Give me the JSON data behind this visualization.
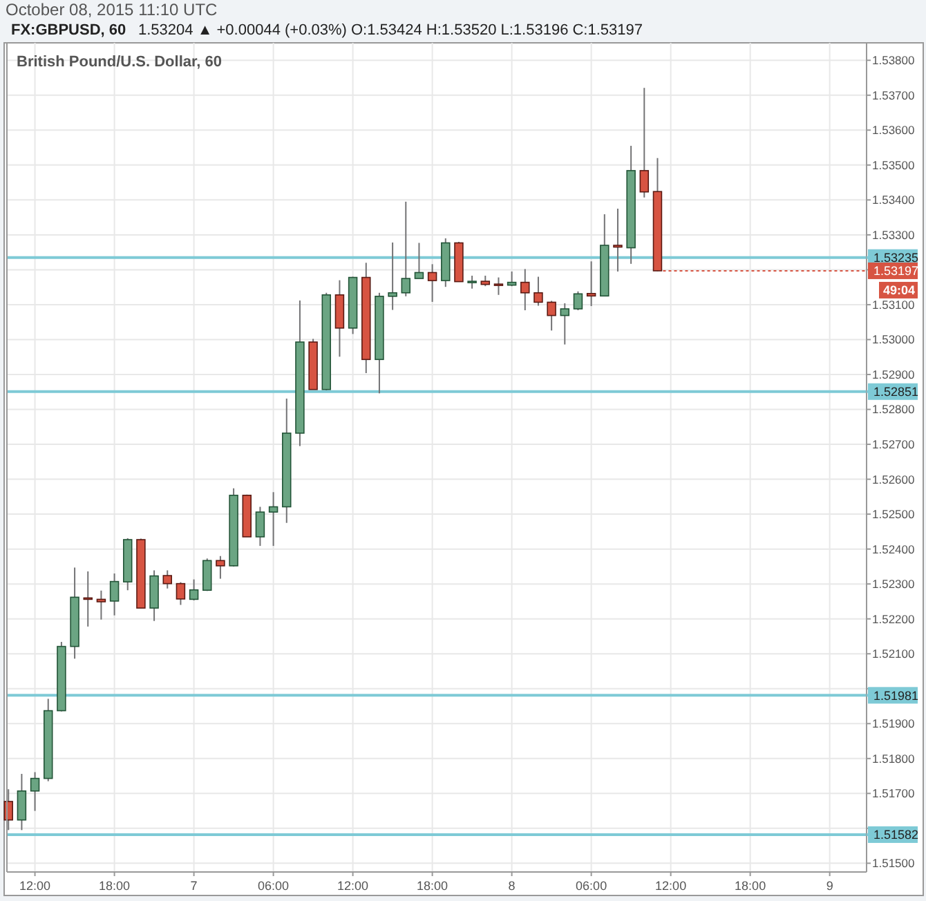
{
  "chart_data": {
    "type": "candlestick",
    "title": "FX:GBPUSD, 60",
    "subtitle": "1.53204 ▲ +0.00044 (+0.03%) O:1.53424 H:1.53520 L:1.53196 C:1.53197",
    "annotations": [
      "October 08, 2015 11:10 UTC",
      "British Pound/U.S. Dollar, 60",
      {
        "text": "1.53197",
        "x": "2015-10-08T11:00",
        "y": 1.53197
      },
      "49:04"
    ],
    "x": [
      "2015-10-06T10:00",
      "2015-10-06T11:00",
      "2015-10-06T12:00",
      "2015-10-06T13:00",
      "2015-10-06T14:00",
      "2015-10-06T15:00",
      "2015-10-06T16:00",
      "2015-10-06T17:00",
      "2015-10-06T18:00",
      "2015-10-06T19:00",
      "2015-10-06T20:00",
      "2015-10-06T21:00",
      "2015-10-06T22:00",
      "2015-10-06T23:00",
      "2015-10-07T00:00",
      "2015-10-07T01:00",
      "2015-10-07T02:00",
      "2015-10-07T03:00",
      "2015-10-07T04:00",
      "2015-10-07T05:00",
      "2015-10-07T06:00",
      "2015-10-07T07:00",
      "2015-10-07T08:00",
      "2015-10-07T09:00",
      "2015-10-07T10:00",
      "2015-10-07T11:00",
      "2015-10-07T12:00",
      "2015-10-07T13:00",
      "2015-10-07T14:00",
      "2015-10-07T15:00",
      "2015-10-07T16:00",
      "2015-10-07T17:00",
      "2015-10-07T18:00",
      "2015-10-07T19:00",
      "2015-10-07T20:00",
      "2015-10-07T21:00",
      "2015-10-07T22:00",
      "2015-10-07T23:00",
      "2015-10-08T00:00",
      "2015-10-08T01:00",
      "2015-10-08T02:00",
      "2015-10-08T03:00",
      "2015-10-08T04:00",
      "2015-10-08T05:00",
      "2015-10-08T06:00",
      "2015-10-08T07:00",
      "2015-10-08T08:00",
      "2015-10-08T09:00",
      "2015-10-08T10:00",
      "2015-10-08T11:00"
    ],
    "ohlc": [
      [
        1.51677,
        1.51712,
        1.51595,
        1.51624
      ],
      [
        1.51624,
        1.51756,
        1.51595,
        1.51707
      ],
      [
        1.51707,
        1.51761,
        1.5165,
        1.51743
      ],
      [
        1.51743,
        1.51971,
        1.51735,
        1.51937
      ],
      [
        1.51937,
        1.52134,
        1.51935,
        1.52121
      ],
      [
        1.52121,
        1.52347,
        1.52086,
        1.52262
      ],
      [
        1.5226,
        1.52336,
        1.52178,
        1.52256
      ],
      [
        1.52256,
        1.52281,
        1.52198,
        1.52249
      ],
      [
        1.52251,
        1.5233,
        1.5221,
        1.52307
      ],
      [
        1.52306,
        1.52431,
        1.52282,
        1.52427
      ],
      [
        1.52427,
        1.5243,
        1.52231,
        1.52231
      ],
      [
        1.52231,
        1.52339,
        1.52194,
        1.52323
      ],
      [
        1.52324,
        1.52339,
        1.52287,
        1.52301
      ],
      [
        1.52301,
        1.52305,
        1.5224,
        1.52257
      ],
      [
        1.52256,
        1.52313,
        1.52253,
        1.52283
      ],
      [
        1.52282,
        1.52373,
        1.5228,
        1.52367
      ],
      [
        1.52367,
        1.5238,
        1.52315,
        1.52352
      ],
      [
        1.52352,
        1.52574,
        1.5235,
        1.52554
      ],
      [
        1.52554,
        1.52556,
        1.52435,
        1.52435
      ],
      [
        1.52435,
        1.52521,
        1.52409,
        1.52506
      ],
      [
        1.52506,
        1.52563,
        1.52409,
        1.52521
      ],
      [
        1.52521,
        1.52831,
        1.52475,
        1.52732
      ],
      [
        1.52732,
        1.53112,
        1.52695,
        1.52993
      ],
      [
        1.52993,
        1.53002,
        1.52857,
        1.52857
      ],
      [
        1.52857,
        1.53134,
        1.52855,
        1.53128
      ],
      [
        1.53128,
        1.5317,
        1.52951,
        1.53033
      ],
      [
        1.53033,
        1.5318,
        1.53016,
        1.53178
      ],
      [
        1.53178,
        1.5322,
        1.52904,
        1.52943
      ],
      [
        1.52943,
        1.53134,
        1.52846,
        1.53124
      ],
      [
        1.53124,
        1.53278,
        1.53085,
        1.53134
      ],
      [
        1.53134,
        1.53395,
        1.53124,
        1.53175
      ],
      [
        1.53175,
        1.53277,
        1.53175,
        1.53192
      ],
      [
        1.53192,
        1.53216,
        1.53108,
        1.53169
      ],
      [
        1.53169,
        1.5329,
        1.53151,
        1.53277
      ],
      [
        1.53277,
        1.5328,
        1.53166,
        1.53166
      ],
      [
        1.53166,
        1.53183,
        1.53146,
        1.53167
      ],
      [
        1.53167,
        1.53183,
        1.53153,
        1.53158
      ],
      [
        1.53159,
        1.53178,
        1.53128,
        1.53156
      ],
      [
        1.53156,
        1.53195,
        1.53153,
        1.53164
      ],
      [
        1.53164,
        1.53202,
        1.53084,
        1.53134
      ],
      [
        1.53134,
        1.5318,
        1.53097,
        1.53107
      ],
      [
        1.53107,
        1.53111,
        1.53026,
        1.53069
      ],
      [
        1.53069,
        1.53104,
        1.52986,
        1.53088
      ],
      [
        1.53088,
        1.53138,
        1.53084,
        1.53131
      ],
      [
        1.53132,
        1.53224,
        1.53096,
        1.53125
      ],
      [
        1.53125,
        1.53359,
        1.53125,
        1.5327
      ],
      [
        1.5327,
        1.53375,
        1.53195,
        1.53265
      ],
      [
        1.53263,
        1.53555,
        1.53217,
        1.53484
      ],
      [
        1.53484,
        1.53721,
        1.53407,
        1.53423
      ],
      [
        1.53424,
        1.5352,
        1.53196,
        1.53197
      ]
    ],
    "xlim": [
      "2015-10-06T09:53",
      "2015-10-09T02:47"
    ],
    "xticks": [
      {
        "value": "2015-10-06T12:00",
        "label": "12:00"
      },
      {
        "value": "2015-10-06T18:00",
        "label": "18:00"
      },
      {
        "value": "2015-10-07T00:00",
        "label": "7"
      },
      {
        "value": "2015-10-07T06:00",
        "label": "06:00"
      },
      {
        "value": "2015-10-07T12:00",
        "label": "12:00"
      },
      {
        "value": "2015-10-07T18:00",
        "label": "18:00"
      },
      {
        "value": "2015-10-08T00:00",
        "label": "8"
      },
      {
        "value": "2015-10-08T06:00",
        "label": "06:00"
      },
      {
        "value": "2015-10-08T12:00",
        "label": "12:00"
      },
      {
        "value": "2015-10-08T18:00",
        "label": "18:00"
      },
      {
        "value": "2015-10-09T00:00",
        "label": "9"
      }
    ],
    "ylim": [
      1.51475,
      1.5385
    ],
    "yticks": [
      {
        "value": 1.515,
        "label": "1.51500"
      },
      {
        "value": 1.516,
        "label": null
      },
      {
        "value": 1.517,
        "label": "1.51700"
      },
      {
        "value": 1.518,
        "label": "1.51800"
      },
      {
        "value": 1.519,
        "label": "1.51900"
      },
      {
        "value": 1.52,
        "label": null
      },
      {
        "value": 1.521,
        "label": "1.52100"
      },
      {
        "value": 1.522,
        "label": "1.52200"
      },
      {
        "value": 1.523,
        "label": "1.52300"
      },
      {
        "value": 1.524,
        "label": "1.52400"
      },
      {
        "value": 1.525,
        "label": "1.52500"
      },
      {
        "value": 1.526,
        "label": "1.52600"
      },
      {
        "value": 1.527,
        "label": "1.52700"
      },
      {
        "value": 1.528,
        "label": "1.52800"
      },
      {
        "value": 1.529,
        "label": "1.52900"
      },
      {
        "value": 1.53,
        "label": "1.53000"
      },
      {
        "value": 1.531,
        "label": "1.53100"
      },
      {
        "value": 1.532,
        "label": null
      },
      {
        "value": 1.533,
        "label": "1.53300"
      },
      {
        "value": 1.534,
        "label": "1.53400"
      },
      {
        "value": 1.535,
        "label": "1.53500"
      },
      {
        "value": 1.536,
        "label": "1.53600"
      },
      {
        "value": 1.537,
        "label": "1.53700"
      },
      {
        "value": 1.538,
        "label": "1.53800"
      }
    ],
    "ref_lines": [
      {
        "axis": "y",
        "value": 1.53235,
        "label": "1.53235",
        "color": "#7ecad6"
      },
      {
        "axis": "y",
        "value": 1.52851,
        "label": "1.52851",
        "color": "#7ecad6"
      },
      {
        "axis": "y",
        "value": 1.51981,
        "label": "1.51981",
        "color": "#7ecad6"
      },
      {
        "axis": "y",
        "value": 1.51582,
        "label": "1.51582",
        "color": "#7ecad6"
      }
    ],
    "grid": true
  }
}
